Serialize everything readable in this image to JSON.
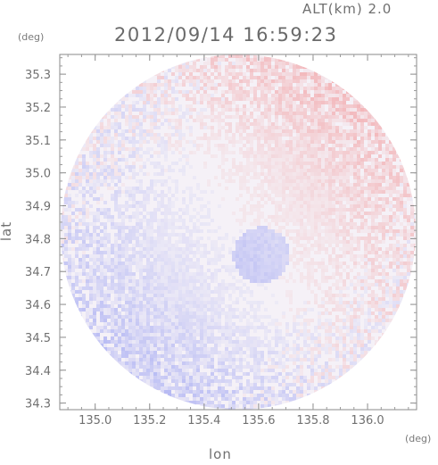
{
  "header": {
    "altitude_label": "ALT(km) 2.0",
    "timestamp": "2012/09/14 16:59:23"
  },
  "chart_data": {
    "type": "heatmap",
    "title": "2012/09/14 16:59:23",
    "subtitle": "ALT(km) 2.0",
    "xlabel": "lon",
    "ylabel": "lat",
    "xunit": "(deg)",
    "yunit": "(deg)",
    "xlim": [
      134.87,
      136.18
    ],
    "ylim": [
      34.28,
      35.36
    ],
    "xticks": [
      135.0,
      135.2,
      135.4,
      135.6,
      135.8,
      136.0
    ],
    "xtick_labels": [
      "135.0",
      "135.2",
      "135.4",
      "135.6",
      "135.8",
      "136.0"
    ],
    "yticks": [
      34.3,
      34.4,
      34.5,
      34.6,
      34.7,
      34.8,
      34.9,
      35.0,
      35.1,
      35.2,
      35.3
    ],
    "ytick_labels": [
      "34.3",
      "34.4",
      "34.5",
      "34.6",
      "34.7",
      "34.8",
      "34.9",
      "35.0",
      "35.1",
      "35.2",
      "35.3"
    ],
    "coverage": {
      "shape": "circle",
      "center": [
        135.525,
        34.82
      ],
      "radius_lon": 0.655,
      "radius_lat": 0.54
    },
    "colors": {
      "positive": "#f06a6a",
      "negative": "#6a76f0",
      "background": "#ffffff"
    },
    "grid": false
  }
}
